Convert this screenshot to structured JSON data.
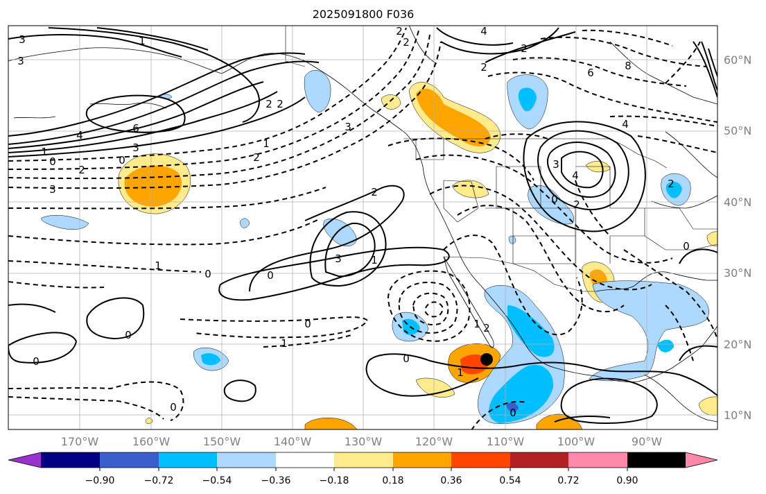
{
  "title": "2025091800 F036",
  "lat_labels": [
    "60°N",
    "50°N",
    "40°N",
    "30°N",
    "20°N",
    "10°N"
  ],
  "lon_labels": [
    "170°W",
    "160°W",
    "150°W",
    "140°W",
    "130°W",
    "120°W",
    "110°W",
    "100°W",
    "90°W"
  ],
  "colorbar": {
    "colors": [
      "#9932cc",
      "#000080",
      "#3a5fcd",
      "#00bfff",
      "#add8ff",
      "#ffffff",
      "#ffeb8c",
      "#ffa500",
      "#ff4500",
      "#b22222",
      "#ff88aa"
    ],
    "tick_labels": [
      "−0.90",
      "−0.72",
      "−0.54",
      "−0.36",
      "−0.18",
      "0.18",
      "0.36",
      "0.54",
      "0.72",
      "0.90"
    ]
  },
  "contour_labels": [
    "3",
    "3",
    "1",
    "4",
    "6",
    "2",
    "2",
    "3",
    "1",
    "0",
    "2",
    "2",
    "3",
    "0",
    "1",
    "2",
    "3",
    "1",
    "0",
    "0",
    "3",
    "2",
    "0",
    "1",
    "0",
    "1",
    "0",
    "2",
    "4",
    "2",
    "6",
    "8",
    "4",
    "3",
    "2",
    "4",
    "0",
    "2",
    "0",
    "2",
    "0",
    "1",
    "1",
    "2",
    "0",
    "0"
  ],
  "storm_marker": "storm-center"
}
